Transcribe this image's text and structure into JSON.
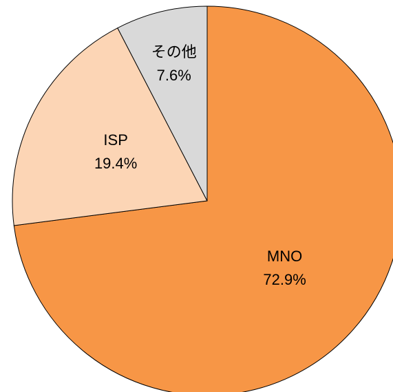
{
  "chart_data": {
    "type": "pie",
    "categories": [
      "MNO",
      "ISP",
      "その他"
    ],
    "values": [
      72.9,
      19.4,
      7.6
    ],
    "value_labels": [
      "72.9%",
      "19.4%",
      "7.6%"
    ],
    "colors": [
      "#f79646",
      "#fcd5b5",
      "#d9d9d9"
    ]
  }
}
